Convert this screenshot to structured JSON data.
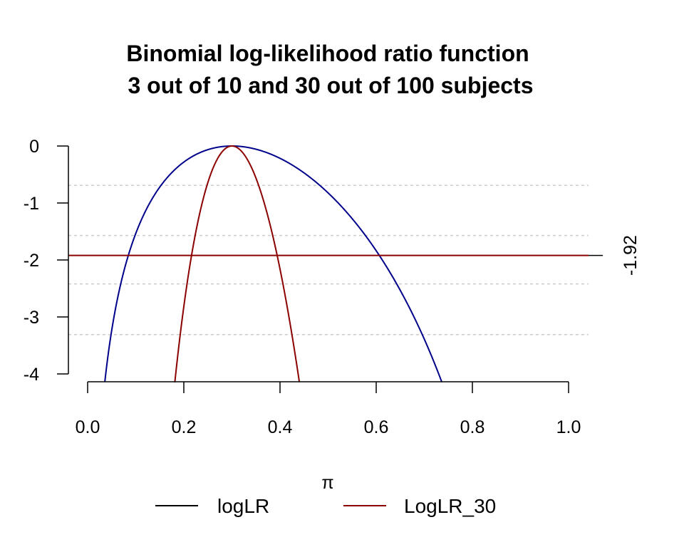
{
  "chart_data": {
    "type": "line",
    "title_lines": [
      "Binomial log-likelihood ratio function",
      "3 out of 10 and 30 out of 100 subjects"
    ],
    "xlabel": "π",
    "ylabel": "",
    "xlim": [
      0.0,
      1.0
    ],
    "ylim": [
      -4.15,
      0
    ],
    "x_ticks": [
      "0.0",
      "0.2",
      "0.4",
      "0.6",
      "0.8",
      "1.0"
    ],
    "x_tick_values": [
      0.0,
      0.2,
      0.4,
      0.6,
      0.8,
      1.0
    ],
    "y_ticks": [
      "0",
      "-1",
      "-2",
      "-3",
      "-4"
    ],
    "y_tick_values": [
      0,
      -1,
      -2,
      -3,
      -4
    ],
    "grid": false,
    "reference_lines": [
      -0.69,
      -1.57,
      -2.42,
      -3.31
    ],
    "reference_line_color": "#cccccc",
    "cutoff": {
      "value": -1.92,
      "label": "-1.92",
      "color": "#8b0000"
    },
    "series": [
      {
        "name": "logLR",
        "k": 3,
        "n": 10,
        "color": "#00008b",
        "legend_color": "#000000"
      },
      {
        "name": "LogLR_30",
        "k": 30,
        "n": 100,
        "color": "#8b0000",
        "legend_color": "#8b0000"
      }
    ],
    "legend": {
      "placement": "bottom",
      "entries": [
        "logLR",
        "LogLR_30"
      ]
    }
  }
}
